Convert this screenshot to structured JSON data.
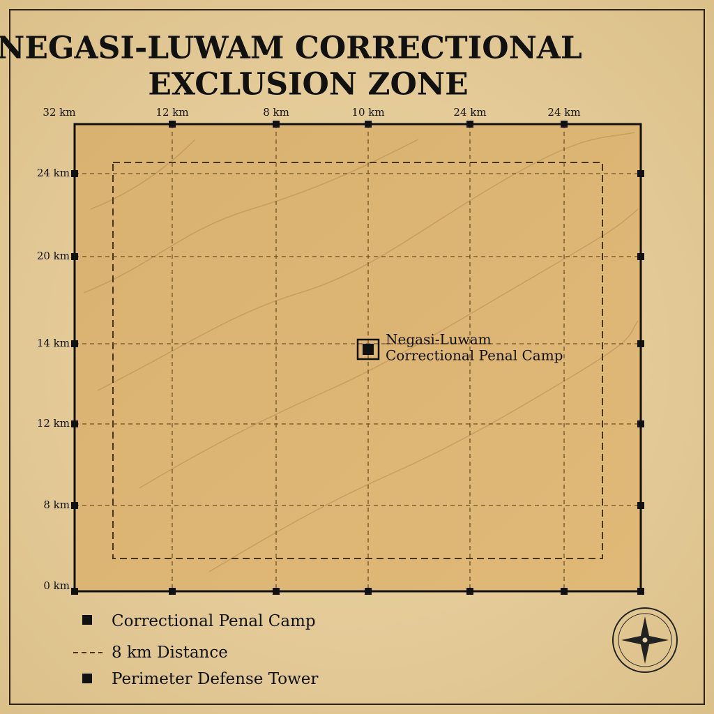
{
  "title": {
    "line1": "NEGASI-LUWAM CORRECTIONAL",
    "line2": "EXCLUSION ZONE"
  },
  "top_labels": [
    "32 km",
    "12 km",
    "8 km",
    "10 km",
    "24 km",
    "24 km"
  ],
  "left_labels": [
    "24 km",
    "20 km",
    "14 km",
    "12 km",
    "8 km",
    "0 km"
  ],
  "camp": {
    "line1": "Negasi-Luwam",
    "line2": "Correctional Penal Camp"
  },
  "legend": [
    {
      "label": "Correctional Penal Camp"
    },
    {
      "label": "8 km Distance"
    },
    {
      "label": "Perimeter Defense Tower"
    }
  ]
}
